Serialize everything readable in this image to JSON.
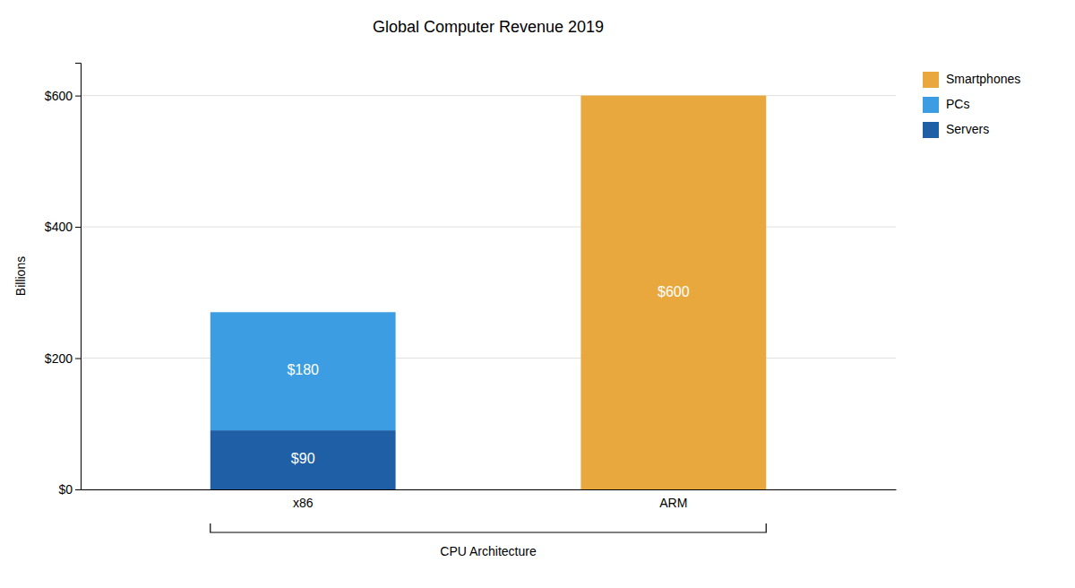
{
  "chart_data": {
    "type": "bar",
    "title": "Global Computer Revenue 2019",
    "x_label": "CPU Architecture",
    "y_label": "Billions",
    "categories": [
      "x86",
      "ARM"
    ],
    "stacked": true,
    "series": [
      {
        "name": "Servers",
        "color": "#1f5fa6",
        "values": [
          90,
          0
        ],
        "value_labels": [
          "$90",
          null
        ]
      },
      {
        "name": "PCs",
        "color": "#3d9de3",
        "values": [
          180,
          0
        ],
        "value_labels": [
          "$180",
          null
        ]
      },
      {
        "name": "Smartphones",
        "color": "#e8a83e",
        "values": [
          0,
          600
        ],
        "value_labels": [
          null,
          "$600"
        ]
      }
    ],
    "data_labels": true,
    "ylim": [
      0,
      650
    ],
    "yticks": [
      {
        "value": 0,
        "label": "$0"
      },
      {
        "value": 200,
        "label": "$200"
      },
      {
        "value": 400,
        "label": "$400"
      },
      {
        "value": 600,
        "label": "$600"
      }
    ],
    "grid": true,
    "legend": "upper right"
  }
}
